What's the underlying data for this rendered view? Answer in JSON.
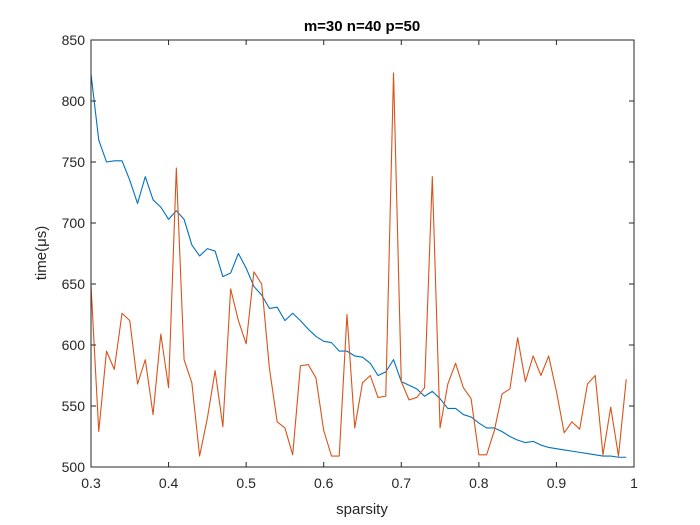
{
  "chart_data": {
    "type": "line",
    "title": "m=30 n=40 p=50",
    "xlabel": "sparsity",
    "ylabel": "time(μs)",
    "xlim": [
      0.3,
      1.0
    ],
    "ylim": [
      500,
      850
    ],
    "xticks": [
      0.3,
      0.4,
      0.5,
      0.6,
      0.7,
      0.8,
      0.9,
      1
    ],
    "xtick_labels": [
      "0.3",
      "0.4",
      "0.5",
      "0.6",
      "0.7",
      "0.8",
      "0.9",
      "1"
    ],
    "yticks": [
      500,
      550,
      600,
      650,
      700,
      750,
      800,
      850
    ],
    "ytick_labels": [
      "500",
      "550",
      "600",
      "650",
      "700",
      "750",
      "800",
      "850"
    ],
    "grid": false,
    "legend": false,
    "x": [
      0.3,
      0.31,
      0.32,
      0.33,
      0.34,
      0.35,
      0.36,
      0.37,
      0.38,
      0.39,
      0.4,
      0.41,
      0.42,
      0.43,
      0.44,
      0.45,
      0.46,
      0.47,
      0.48,
      0.49,
      0.5,
      0.51,
      0.52,
      0.53,
      0.54,
      0.55,
      0.56,
      0.57,
      0.58,
      0.59,
      0.6,
      0.61,
      0.62,
      0.63,
      0.64,
      0.65,
      0.66,
      0.67,
      0.68,
      0.69,
      0.7,
      0.71,
      0.72,
      0.73,
      0.74,
      0.75,
      0.76,
      0.77,
      0.78,
      0.79,
      0.8,
      0.81,
      0.82,
      0.83,
      0.84,
      0.85,
      0.86,
      0.87,
      0.88,
      0.89,
      0.9,
      0.91,
      0.92,
      0.93,
      0.94,
      0.95,
      0.96,
      0.97,
      0.98,
      0.99
    ],
    "series": [
      {
        "color": "#0072BD",
        "values": [
          822,
          768,
          750,
          751,
          751,
          735,
          716,
          738,
          719,
          713,
          703,
          710,
          703,
          682,
          673,
          679,
          677,
          656,
          659,
          675,
          663,
          648,
          641,
          630,
          631,
          620,
          626,
          620,
          613,
          607,
          603,
          602,
          595,
          595,
          591,
          590,
          585,
          575,
          578,
          588,
          570,
          567,
          564,
          558,
          562,
          556,
          548,
          548,
          543,
          541,
          536,
          532,
          532,
          529,
          525,
          522,
          520,
          521,
          518,
          516,
          515,
          514,
          513,
          512,
          511,
          510,
          509,
          509,
          508,
          508
        ]
      },
      {
        "color": "#D95319",
        "values": [
          649,
          529,
          595,
          580,
          626,
          620,
          568,
          588,
          543,
          609,
          565,
          745,
          588,
          569,
          509,
          540,
          579,
          533,
          646,
          620,
          601,
          660,
          650,
          581,
          537,
          532,
          510,
          583,
          584,
          573,
          530,
          509,
          509,
          625,
          532,
          569,
          575,
          557,
          558,
          823,
          570,
          555,
          557,
          565,
          738,
          532,
          568,
          585,
          565,
          556,
          510,
          510,
          530,
          560,
          564,
          606,
          570,
          591,
          575,
          591,
          562,
          528,
          537,
          531,
          568,
          575,
          510,
          549,
          509,
          572
        ]
      }
    ]
  }
}
